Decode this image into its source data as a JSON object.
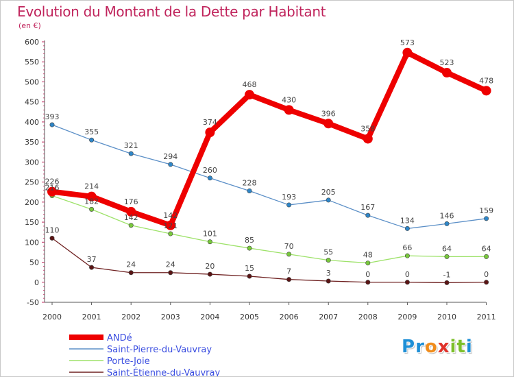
{
  "header": {
    "title": "Evolution du Montant de la Dette par Habitant",
    "subtitle": "(en €)"
  },
  "brand": {
    "logo_letters": [
      {
        "char": "P",
        "color": "#1e8fd6"
      },
      {
        "char": "r",
        "color": "#1e8fd6"
      },
      {
        "char": "o",
        "color": "#f08c1c"
      },
      {
        "char": "x",
        "color": "#e0322a"
      },
      {
        "char": "i",
        "color": "#7cbf2a"
      },
      {
        "char": "t",
        "color": "#7cbf2a"
      },
      {
        "char": "i",
        "color": "#1e8fd6"
      }
    ]
  },
  "chart_data": {
    "type": "line",
    "title": "Evolution du Montant de la Dette par Habitant",
    "subtitle": "(en €)",
    "xlabel": "",
    "ylabel": "",
    "x": [
      "2000",
      "2001",
      "2002",
      "2003",
      "2004",
      "2005",
      "2006",
      "2007",
      "2008",
      "2009",
      "2010",
      "2011"
    ],
    "ylim": [
      -50,
      600
    ],
    "yticks": [
      -50,
      0,
      50,
      100,
      150,
      200,
      250,
      300,
      350,
      400,
      450,
      500,
      550,
      600
    ],
    "grid": false,
    "legend_position": "bottom-left",
    "series": [
      {
        "name": "ANDé",
        "color": "#ee0000",
        "point_color": "#ee0000",
        "emphasis": true,
        "values": [
          226,
          214,
          176,
          142,
          374,
          468,
          430,
          396,
          358,
          573,
          523,
          478
        ],
        "labels": [
          "226",
          "214",
          "176",
          "142",
          "374",
          "468",
          "430",
          "396",
          "358",
          "573",
          "523",
          "478"
        ]
      },
      {
        "name": "Saint-Pierre-du-Vauvray",
        "color": "#5b8fc7",
        "point_color": "#2e86c8",
        "emphasis": false,
        "values": [
          393,
          355,
          321,
          294,
          260,
          228,
          193,
          205,
          167,
          134,
          146,
          159
        ],
        "labels": [
          "393",
          "355",
          "321",
          "294",
          "260",
          "228",
          "193",
          "205",
          "167",
          "134",
          "146",
          "159"
        ]
      },
      {
        "name": "Porte-Joie",
        "color": "#9ee26a",
        "point_color": "#78c83c",
        "emphasis": false,
        "values": [
          216,
          182,
          142,
          121,
          101,
          85,
          70,
          55,
          48,
          66,
          64,
          64
        ],
        "labels": [
          "216",
          "182",
          "142",
          "121",
          "101",
          "85",
          "70",
          "55",
          "48",
          "66",
          "64",
          "64"
        ]
      },
      {
        "name": "Saint-Étienne-du-Vauvray",
        "color": "#6e2020",
        "point_color": "#5a1414",
        "emphasis": false,
        "values": [
          110,
          37,
          24,
          24,
          20,
          15,
          7,
          3,
          0,
          0,
          -1,
          0
        ],
        "labels": [
          "110",
          "37",
          "24",
          "24",
          "20",
          "15",
          "7",
          "3",
          "0",
          "0",
          "-1",
          "0"
        ]
      }
    ]
  }
}
